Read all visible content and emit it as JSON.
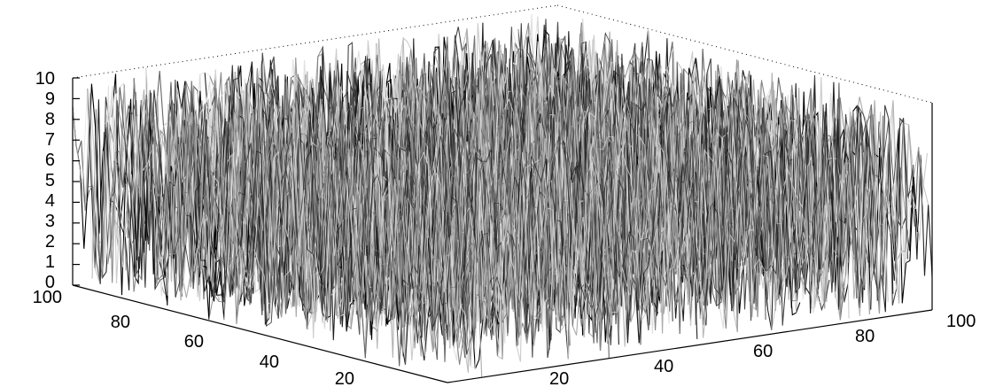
{
  "chart_data": {
    "type": "mesh3d",
    "title": "",
    "xlabel": "",
    "ylabel": "",
    "zlabel": "",
    "x_range": [
      0,
      100
    ],
    "y_range": [
      0,
      100
    ],
    "z_range": [
      0,
      10
    ],
    "x_ticks": [
      "20",
      "40",
      "60",
      "80",
      "100"
    ],
    "y_ticks": [
      "20",
      "40",
      "60",
      "80",
      "100"
    ],
    "z_ticks": [
      "0",
      "1",
      "2",
      "3",
      "4",
      "5",
      "6",
      "7",
      "8",
      "9",
      "10"
    ],
    "grid_size": 100,
    "data_description": "uniform random heights in [0, 10]",
    "colormap": "gray",
    "grid": false,
    "box": true
  }
}
